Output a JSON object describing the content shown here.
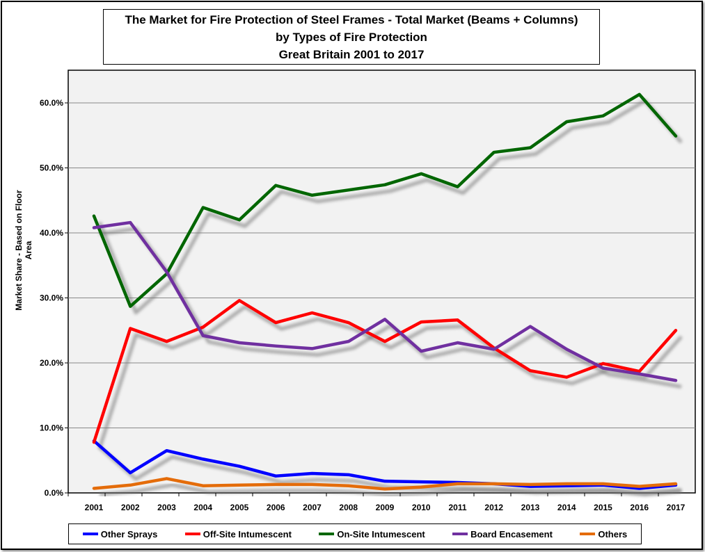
{
  "chart_data": {
    "type": "line",
    "title": [
      "The Market for Fire Protection of Steel Frames - Total Market (Beams + Columns)",
      "by Types of Fire Protection",
      "Great Britain 2001 to 2017"
    ],
    "xlabel": "",
    "ylabel": "Market Share - Based on Floor Area",
    "ylim": [
      0,
      65
    ],
    "yticks": [
      "0.0%",
      "10.0%",
      "20.0%",
      "30.0%",
      "40.0%",
      "50.0%",
      "60.0%"
    ],
    "grid": true,
    "legend_position": "bottom",
    "categories": [
      "2001",
      "2002",
      "2003",
      "2004",
      "2005",
      "2006",
      "2007",
      "2008",
      "2009",
      "2010",
      "2011",
      "2012",
      "2013",
      "2014",
      "2015",
      "2016",
      "2017"
    ],
    "series": [
      {
        "name": "Other Sprays",
        "color": "#0000ff",
        "values": [
          8.0,
          3.1,
          6.5,
          5.2,
          4.1,
          2.6,
          3.0,
          2.8,
          1.8,
          1.7,
          1.6,
          1.4,
          1.0,
          1.1,
          1.2,
          0.7,
          1.2
        ]
      },
      {
        "name": "Off-Site Intumescent",
        "color": "#ff0000",
        "values": [
          7.8,
          25.3,
          23.3,
          25.5,
          29.6,
          26.2,
          27.7,
          26.2,
          23.3,
          26.3,
          26.6,
          22.3,
          18.8,
          17.8,
          19.9,
          18.7,
          25.0
        ]
      },
      {
        "name": "On-Site Intumescent",
        "color": "#006600",
        "values": [
          42.6,
          28.7,
          33.7,
          43.9,
          42.0,
          47.3,
          45.8,
          46.6,
          47.4,
          49.1,
          47.1,
          52.4,
          53.1,
          57.1,
          58.0,
          61.3,
          54.9
        ]
      },
      {
        "name": "Board Encasement",
        "color": "#7030a0",
        "values": [
          40.8,
          41.6,
          34.0,
          24.2,
          23.1,
          22.6,
          22.2,
          23.3,
          26.7,
          21.8,
          23.1,
          22.1,
          25.6,
          22.1,
          19.2,
          18.3,
          17.3
        ]
      },
      {
        "name": "Others",
        "color": "#e46c0a",
        "values": [
          0.7,
          1.2,
          2.2,
          1.1,
          1.2,
          1.3,
          1.3,
          1.1,
          0.6,
          0.9,
          1.4,
          1.4,
          1.3,
          1.4,
          1.4,
          1.0,
          1.4
        ]
      }
    ]
  }
}
